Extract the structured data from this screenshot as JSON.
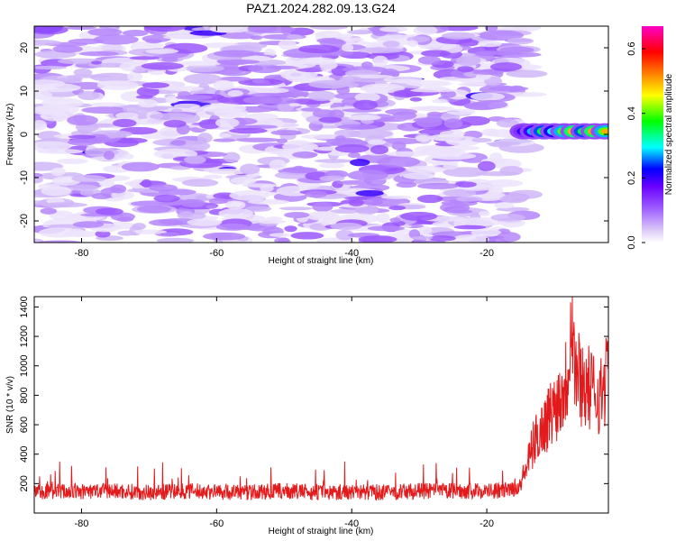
{
  "chart_data": [
    {
      "type": "heatmap",
      "title": "PAZ1.2024.282.09.13.G24",
      "xlabel": "Height of straight line (km)",
      "ylabel": "Frequency (Hz)",
      "xlim": [
        -87,
        -2
      ],
      "ylim": [
        -25,
        25
      ],
      "xticks": [
        -80,
        -60,
        -40,
        -20
      ],
      "yticks": [
        -20,
        -10,
        0,
        10,
        20
      ],
      "colorbar": {
        "label": "Normalized spectral amplitude",
        "range": [
          0,
          0.67
        ],
        "ticks": [
          0.0,
          0.2,
          0.4,
          0.6
        ],
        "colormap": "rainbow (white at 0 → purple → blue → cyan → green → yellow → orange → red → magenta)"
      },
      "features": [
        {
          "x_range": [
            -87,
            -14
          ],
          "freq_range": [
            -25,
            25
          ],
          "amplitude": [
            0.0,
            0.12
          ],
          "pattern": "broadband noise"
        },
        {
          "x_range": [
            -15,
            -2
          ],
          "freq_center": 0.7,
          "freq_halfwidth": 2,
          "amplitude": [
            0.3,
            0.65
          ],
          "pattern": "carrier signal near 0 Hz"
        }
      ],
      "grid": false,
      "legend": "colorbar right"
    },
    {
      "type": "line",
      "xlabel": "Height of straight line (km)",
      "ylabel": "SNR (10 * v/v)",
      "xlim": [
        -87,
        -2
      ],
      "ylim": [
        0,
        1470
      ],
      "xticks": [
        -80,
        -60,
        -40,
        -20
      ],
      "yticks": [
        200,
        400,
        600,
        800,
        1000,
        1200,
        1400
      ],
      "series": [
        {
          "color": "#e31a1c",
          "x": [
            -87,
            -85,
            -80,
            -75,
            -70,
            -65,
            -60,
            -55,
            -50,
            -45,
            -40,
            -35,
            -30,
            -25,
            -20,
            -16,
            -15,
            -14,
            -13,
            -12,
            -11,
            -10,
            -9,
            -8,
            -7.5,
            -7,
            -6,
            -5,
            -4,
            -3,
            -2
          ],
          "values": [
            140,
            150,
            145,
            150,
            140,
            150,
            145,
            140,
            150,
            140,
            145,
            140,
            150,
            150,
            150,
            155,
            200,
            330,
            480,
            560,
            640,
            720,
            800,
            950,
            1450,
            1000,
            900,
            850,
            820,
            800,
            1000
          ]
        }
      ],
      "grid": false
    }
  ]
}
